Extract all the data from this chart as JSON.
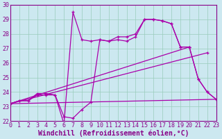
{
  "xlabel": "Windchill (Refroidissement éolien,°C)",
  "xlim": [
    0,
    23
  ],
  "ylim": [
    22,
    30
  ],
  "yticks": [
    22,
    23,
    24,
    25,
    26,
    27,
    28,
    29,
    30
  ],
  "xticks": [
    0,
    1,
    2,
    3,
    4,
    5,
    6,
    7,
    8,
    9,
    10,
    11,
    12,
    13,
    14,
    15,
    16,
    17,
    18,
    19,
    20,
    21,
    22,
    23
  ],
  "background_color": "#cce8f0",
  "grid_color": "#99ccbb",
  "line_color": "#aa00aa",
  "curve1_x": [
    0,
    1,
    2,
    3,
    4,
    5,
    6,
    7,
    8,
    9,
    10,
    11,
    12,
    13,
    14,
    15,
    16,
    17,
    18,
    19,
    20,
    21,
    22,
    23
  ],
  "curve1_y": [
    23.2,
    23.4,
    23.4,
    23.9,
    23.9,
    23.8,
    21.8,
    29.5,
    27.6,
    27.5,
    27.6,
    27.5,
    27.8,
    27.8,
    28.0,
    29.0,
    29.0,
    28.9,
    28.7,
    27.1,
    27.1,
    24.9,
    24.0,
    23.5
  ],
  "curve2_x": [
    0,
    1,
    2,
    3,
    4,
    5,
    6,
    7,
    8,
    9,
    10,
    11,
    12,
    13,
    14,
    15,
    16,
    17,
    18,
    19,
    20,
    21,
    22,
    23
  ],
  "curve2_y": [
    23.2,
    23.4,
    23.4,
    23.8,
    23.8,
    23.8,
    22.3,
    22.2,
    22.8,
    23.3,
    27.6,
    27.5,
    27.6,
    27.5,
    27.8,
    29.0,
    29.0,
    28.9,
    28.7,
    27.1,
    27.1,
    24.9,
    24.0,
    23.5
  ],
  "line3_x": [
    0,
    20
  ],
  "line3_y": [
    23.2,
    27.1
  ],
  "line4_x": [
    0,
    22
  ],
  "line4_y": [
    23.2,
    26.7
  ],
  "line5_x": [
    0,
    23
  ],
  "line5_y": [
    23.2,
    23.5
  ],
  "font_color": "#880088",
  "tick_fontsize": 6.0,
  "label_fontsize": 7.0
}
